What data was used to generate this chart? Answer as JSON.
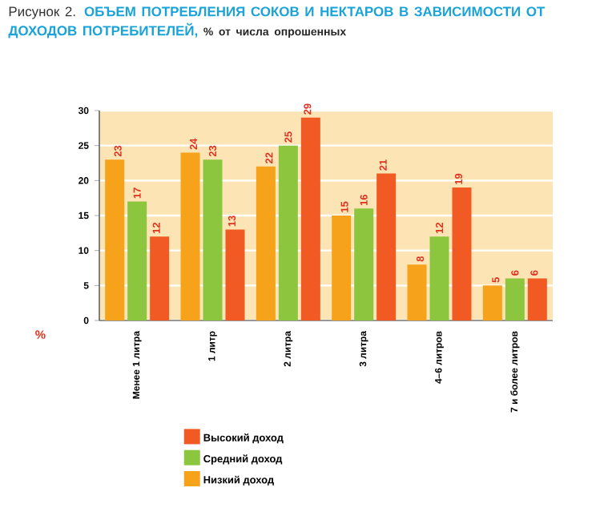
{
  "chart_data": {
    "type": "bar",
    "title": "ОБЪЕМ ПОТРЕБЛЕНИЯ СОКОВ И НЕКТАРОВ В ЗАВИСИМОСТИ ОТ ДОХОДОВ ПОТРЕБИТЕЛЕЙ,",
    "subtitle": "% от числа опрошенных",
    "annotations": [
      "Рисунок 2."
    ],
    "ylabel": "%",
    "categories": [
      "Менее 1 литра",
      "1 литр",
      "2 литра",
      "3 литра",
      "4–6 литров",
      "7 и более литров"
    ],
    "series": [
      {
        "name": "Низкий доход",
        "color": "#f7a21b",
        "values": [
          23,
          24,
          22,
          15,
          8,
          5
        ]
      },
      {
        "name": "Средний доход",
        "color": "#8cc63e",
        "values": [
          17,
          23,
          25,
          16,
          12,
          6
        ]
      },
      {
        "name": "Высокий доход",
        "color": "#f15a22",
        "values": [
          12,
          13,
          29,
          21,
          19,
          6
        ]
      }
    ],
    "ylim": [
      0,
      30
    ],
    "yticks": [
      0,
      5,
      10,
      15,
      20,
      25,
      30
    ],
    "grid": "y",
    "legend": "bottom",
    "data_labels": true
  }
}
